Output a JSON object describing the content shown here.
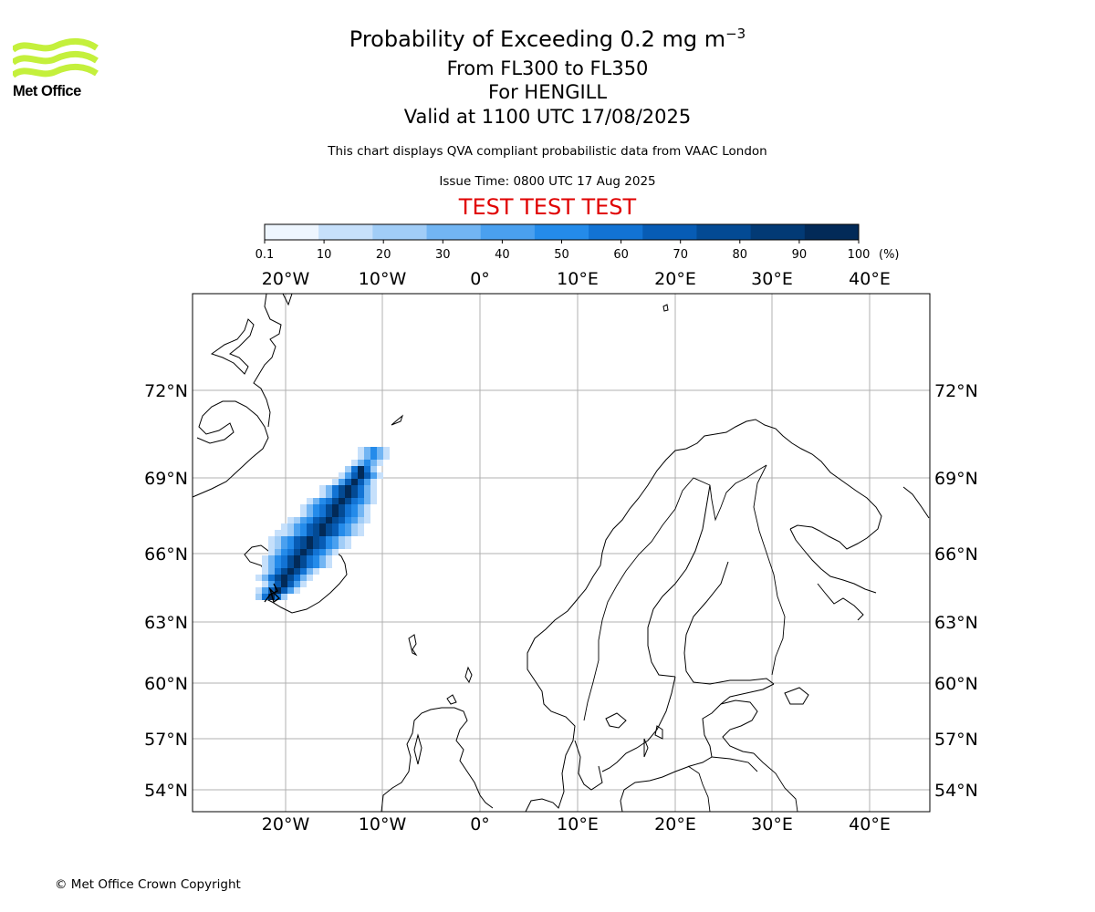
{
  "header": {
    "title_prefix": "Probability of Exceeding 0.2 mg m",
    "title_exponent": "−3",
    "level": "From FL300 to FL350",
    "volcano": "For HENGILL",
    "valid": "Valid at 1100 UTC 17/08/2025",
    "source_note": "This chart displays QVA compliant probabilistic data from VAAC London",
    "issue_time": "Issue Time: 0800 UTC 17 Aug 2025",
    "test_banner": "TEST TEST TEST"
  },
  "logo": {
    "text": "Met Office",
    "color": "#c4f03c"
  },
  "colorbar": {
    "ticks": [
      "0.1",
      "10",
      "20",
      "30",
      "40",
      "50",
      "60",
      "70",
      "80",
      "90",
      "100"
    ],
    "unit": "(%)",
    "colors": [
      "#eef6ff",
      "#c6e0fb",
      "#a1cdf7",
      "#72b5f3",
      "#4aa0ef",
      "#248bea",
      "#1273d4",
      "#075cb5",
      "#034a94",
      "#023a75",
      "#022a58"
    ]
  },
  "map": {
    "lon_ticks": [
      "20°W",
      "10°W",
      "0°",
      "10°E",
      "20°E",
      "30°E",
      "40°E"
    ],
    "lat_ticks": [
      "72°N",
      "69°N",
      "66°N",
      "63°N",
      "60°N",
      "57°N",
      "54°N"
    ],
    "grid_color": "#b0b0b0",
    "plume_cells": [
      [
        4,
        0,
        1
      ],
      [
        5,
        0,
        1
      ],
      [
        3,
        1,
        1
      ],
      [
        4,
        1,
        2
      ],
      [
        5,
        1,
        1
      ],
      [
        2,
        2,
        1
      ],
      [
        3,
        2,
        3
      ],
      [
        4,
        2,
        3
      ],
      [
        5,
        2,
        2
      ],
      [
        1,
        3,
        1
      ],
      [
        2,
        3,
        2
      ],
      [
        3,
        3,
        4
      ],
      [
        4,
        3,
        4
      ],
      [
        5,
        3,
        2
      ],
      [
        0,
        4,
        1
      ],
      [
        1,
        4,
        3
      ],
      [
        2,
        4,
        5
      ],
      [
        3,
        4,
        6
      ],
      [
        4,
        4,
        5
      ],
      [
        5,
        4,
        2
      ],
      [
        0,
        5,
        2
      ],
      [
        1,
        5,
        4
      ],
      [
        2,
        5,
        7
      ],
      [
        3,
        5,
        8
      ],
      [
        4,
        5,
        7
      ],
      [
        5,
        5,
        3
      ]
    ]
  },
  "copyright": "© Met Office Crown Copyright"
}
